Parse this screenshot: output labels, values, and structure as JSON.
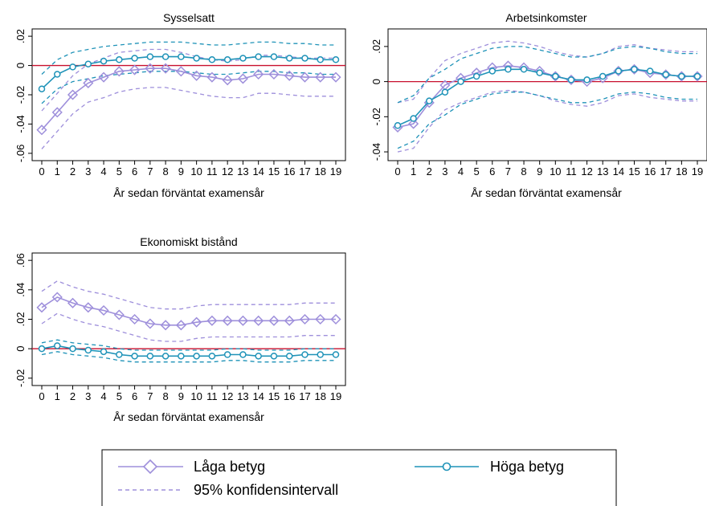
{
  "colors": {
    "laga": "#9E8FDB",
    "hoga": "#1F93B8",
    "laga_ci": "#9E8FDB",
    "hoga_ci": "#1F93B8",
    "zero_line": "#C8102E"
  },
  "legend": {
    "laga_label": "Låga betyg",
    "hoga_label": "Höga betyg",
    "ci_label": "95% konfidensintervall"
  },
  "chart_data": [
    {
      "type": "line",
      "title": "Sysselsatt",
      "xlabel": "År sedan förväntat examensår",
      "ylabel": "",
      "x": [
        0,
        1,
        2,
        3,
        4,
        5,
        6,
        7,
        8,
        9,
        10,
        11,
        12,
        13,
        14,
        15,
        16,
        17,
        18,
        19
      ],
      "ylim": [
        -0.065,
        0.025
      ],
      "yticks": [
        0.02,
        0,
        -0.02,
        -0.04,
        -0.06
      ],
      "ytick_labels": [
        ".02",
        "0",
        "-.02",
        "-.04",
        "-.06"
      ],
      "series": [
        {
          "name": "Låga betyg",
          "values": [
            -0.044,
            -0.032,
            -0.02,
            -0.012,
            -0.008,
            -0.004,
            -0.003,
            -0.002,
            -0.002,
            -0.004,
            -0.007,
            -0.008,
            -0.01,
            -0.009,
            -0.006,
            -0.006,
            -0.007,
            -0.008,
            -0.008,
            -0.008
          ],
          "ci_low": [
            -0.057,
            -0.045,
            -0.033,
            -0.025,
            -0.022,
            -0.018,
            -0.016,
            -0.015,
            -0.015,
            -0.017,
            -0.019,
            -0.021,
            -0.022,
            -0.022,
            -0.019,
            -0.019,
            -0.02,
            -0.021,
            -0.021,
            -0.021
          ],
          "ci_high": [
            -0.031,
            -0.019,
            -0.007,
            0.001,
            0.005,
            0.009,
            0.01,
            0.011,
            0.011,
            0.009,
            0.006,
            0.004,
            0.003,
            0.004,
            0.007,
            0.007,
            0.006,
            0.005,
            0.005,
            0.005
          ]
        },
        {
          "name": "Höga betyg",
          "values": [
            -0.016,
            -0.006,
            -0.001,
            0.001,
            0.003,
            0.004,
            0.005,
            0.006,
            0.006,
            0.006,
            0.005,
            0.004,
            0.004,
            0.005,
            0.006,
            0.006,
            0.005,
            0.005,
            0.004,
            0.004
          ],
          "ci_low": [
            -0.026,
            -0.016,
            -0.011,
            -0.009,
            -0.007,
            -0.006,
            -0.005,
            -0.004,
            -0.004,
            -0.004,
            -0.005,
            -0.006,
            -0.006,
            -0.005,
            -0.004,
            -0.004,
            -0.005,
            -0.005,
            -0.006,
            -0.006
          ],
          "ci_high": [
            -0.006,
            0.004,
            0.009,
            0.011,
            0.013,
            0.014,
            0.015,
            0.016,
            0.016,
            0.016,
            0.015,
            0.014,
            0.014,
            0.015,
            0.016,
            0.016,
            0.015,
            0.015,
            0.014,
            0.014
          ]
        }
      ]
    },
    {
      "type": "line",
      "title": "Arbetsinkomster",
      "xlabel": "År sedan förväntat examensår",
      "ylabel": "",
      "x": [
        0,
        1,
        2,
        3,
        4,
        5,
        6,
        7,
        8,
        9,
        10,
        11,
        12,
        13,
        14,
        15,
        16,
        17,
        18,
        19
      ],
      "ylim": [
        -0.045,
        0.03
      ],
      "yticks": [
        0.02,
        0,
        -0.02,
        -0.04
      ],
      "ytick_labels": [
        ".02",
        "0",
        "-.02",
        "-.04"
      ],
      "series": [
        {
          "name": "Låga betyg",
          "values": [
            -0.026,
            -0.024,
            -0.012,
            -0.002,
            0.002,
            0.005,
            0.008,
            0.009,
            0.008,
            0.006,
            0.003,
            0.001,
            0.0,
            0.002,
            0.006,
            0.007,
            0.005,
            0.004,
            0.003,
            0.003
          ],
          "ci_low": [
            -0.04,
            -0.038,
            -0.026,
            -0.016,
            -0.012,
            -0.009,
            -0.006,
            -0.005,
            -0.006,
            -0.008,
            -0.011,
            -0.013,
            -0.014,
            -0.012,
            -0.008,
            -0.007,
            -0.009,
            -0.01,
            -0.011,
            -0.011
          ],
          "ci_high": [
            -0.012,
            -0.01,
            0.002,
            0.012,
            0.016,
            0.019,
            0.022,
            0.023,
            0.022,
            0.02,
            0.017,
            0.015,
            0.014,
            0.016,
            0.02,
            0.021,
            0.019,
            0.018,
            0.017,
            0.017
          ]
        },
        {
          "name": "Höga betyg",
          "values": [
            -0.025,
            -0.021,
            -0.011,
            -0.006,
            0.0,
            0.003,
            0.006,
            0.007,
            0.007,
            0.005,
            0.003,
            0.001,
            0.001,
            0.003,
            0.006,
            0.007,
            0.006,
            0.004,
            0.003,
            0.003
          ],
          "ci_low": [
            -0.038,
            -0.034,
            -0.024,
            -0.019,
            -0.013,
            -0.01,
            -0.007,
            -0.006,
            -0.006,
            -0.008,
            -0.01,
            -0.012,
            -0.012,
            -0.01,
            -0.007,
            -0.006,
            -0.007,
            -0.009,
            -0.01,
            -0.01
          ],
          "ci_high": [
            -0.012,
            -0.008,
            0.002,
            0.007,
            0.013,
            0.016,
            0.019,
            0.02,
            0.02,
            0.018,
            0.016,
            0.014,
            0.014,
            0.016,
            0.019,
            0.02,
            0.019,
            0.017,
            0.016,
            0.016
          ]
        }
      ]
    },
    {
      "type": "line",
      "title": "Ekonomiskt bistånd",
      "xlabel": "År sedan förväntat examensår",
      "ylabel": "",
      "x": [
        0,
        1,
        2,
        3,
        4,
        5,
        6,
        7,
        8,
        9,
        10,
        11,
        12,
        13,
        14,
        15,
        16,
        17,
        18,
        19
      ],
      "ylim": [
        -0.025,
        0.065
      ],
      "yticks": [
        0.06,
        0.04,
        0.02,
        0,
        -0.02
      ],
      "ytick_labels": [
        ".06",
        ".04",
        ".02",
        "0",
        "-.02"
      ],
      "series": [
        {
          "name": "Låga betyg",
          "values": [
            0.028,
            0.035,
            0.031,
            0.028,
            0.026,
            0.023,
            0.02,
            0.017,
            0.016,
            0.016,
            0.018,
            0.019,
            0.019,
            0.019,
            0.019,
            0.019,
            0.019,
            0.02,
            0.02,
            0.02
          ],
          "ci_low": [
            0.017,
            0.024,
            0.02,
            0.017,
            0.015,
            0.012,
            0.009,
            0.006,
            0.005,
            0.005,
            0.007,
            0.008,
            0.008,
            0.008,
            0.008,
            0.008,
            0.008,
            0.009,
            0.009,
            0.009
          ],
          "ci_high": [
            0.039,
            0.046,
            0.042,
            0.039,
            0.037,
            0.034,
            0.031,
            0.028,
            0.027,
            0.027,
            0.029,
            0.03,
            0.03,
            0.03,
            0.03,
            0.03,
            0.03,
            0.031,
            0.031,
            0.031
          ]
        },
        {
          "name": "Höga betyg",
          "values": [
            0.0,
            0.002,
            0.0,
            -0.001,
            -0.002,
            -0.004,
            -0.005,
            -0.005,
            -0.005,
            -0.005,
            -0.005,
            -0.005,
            -0.004,
            -0.004,
            -0.005,
            -0.005,
            -0.005,
            -0.004,
            -0.004,
            -0.004
          ],
          "ci_low": [
            -0.004,
            -0.002,
            -0.004,
            -0.005,
            -0.006,
            -0.008,
            -0.009,
            -0.009,
            -0.009,
            -0.009,
            -0.009,
            -0.009,
            -0.008,
            -0.008,
            -0.009,
            -0.009,
            -0.009,
            -0.008,
            -0.008,
            -0.008
          ],
          "ci_high": [
            0.004,
            0.006,
            0.004,
            0.003,
            0.002,
            0.0,
            -0.001,
            -0.001,
            -0.001,
            -0.001,
            -0.001,
            -0.001,
            0.0,
            0.0,
            -0.001,
            -0.001,
            -0.001,
            0.0,
            0.0,
            0.0
          ]
        }
      ]
    }
  ]
}
